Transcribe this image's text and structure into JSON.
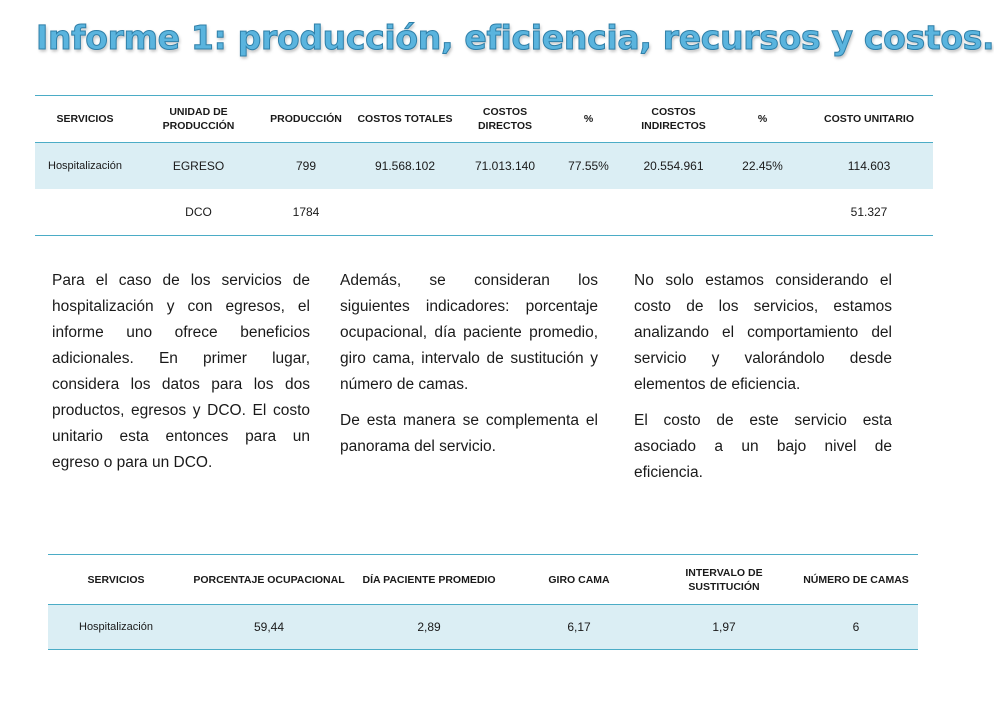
{
  "header": {
    "title": "Informe 1: producción, eficiencia, recursos y costos."
  },
  "table1": {
    "columns": [
      "SERVICIOS",
      "UNIDAD DE PRODUCCIÓN",
      "PRODUCCIÓN",
      "COSTOS TOTALES",
      "COSTOS DIRECTOS",
      "%",
      "COSTOS INDIRECTOS",
      "%",
      "COSTO UNITARIO"
    ],
    "rows": [
      [
        "Hospitalización",
        "EGRESO",
        "799",
        "91.568.102",
        "71.013.140",
        "77.55%",
        "20.554.961",
        "22.45%",
        "114.603"
      ],
      [
        null,
        "DCO",
        "1784",
        null,
        null,
        null,
        null,
        null,
        "51.327"
      ]
    ]
  },
  "text": {
    "columns": [
      [
        "Para el caso de los servicios de hospitalización y con egresos, el informe uno ofrece beneficios adicionales. En primer lugar, considera los datos para los dos productos, egresos y DCO. El costo unitario esta entonces para un egreso o para un DCO."
      ],
      [
        "Además, se consideran los siguientes indicadores: porcentaje ocupacional, día paciente promedio, giro cama, intervalo de sustitución y número de camas.",
        "De esta manera se complementa el panorama del servicio."
      ],
      [
        "No solo estamos considerando el costo de los servicios, estamos analizando el comportamiento del servicio y valorándolo desde elementos de eficiencia.",
        "El costo de este servicio esta asociado a un bajo nivel de eficiencia."
      ]
    ]
  },
  "table2": {
    "columns": [
      "SERVICIOS",
      "PORCENTAJE OCUPACIONAL",
      "DÍA PACIENTE PROMEDIO",
      "GIRO CAMA",
      "INTERVALO DE SUSTITUCIÓN",
      "NÚMERO DE CAMAS"
    ],
    "rows": [
      [
        "Hospitalización",
        "59,44",
        "2,89",
        "6,17",
        "1,97",
        "6"
      ]
    ]
  }
}
